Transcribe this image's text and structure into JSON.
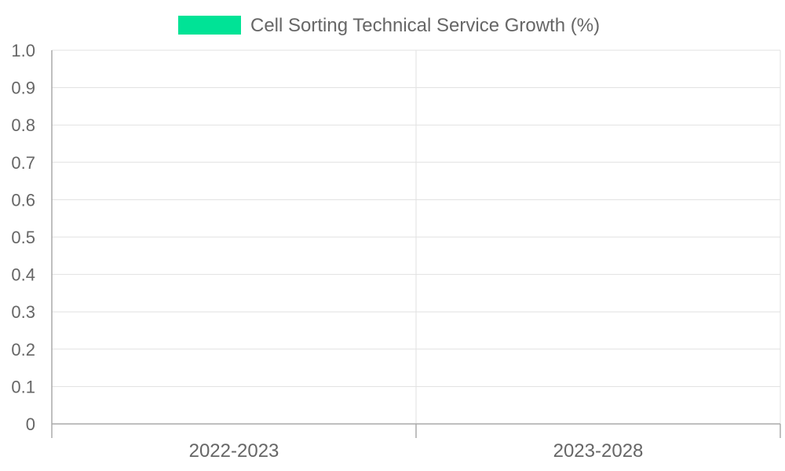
{
  "chart_data": {
    "type": "bar",
    "categories": [
      "2022-2023",
      "2023-2028"
    ],
    "series": [
      {
        "name": "Cell Sorting Technical Service Growth (%)",
        "color": "#00e396",
        "values": [
          0,
          0
        ]
      }
    ],
    "ylim": [
      0,
      1.0
    ],
    "yticks": [
      "0",
      "0.1",
      "0.2",
      "0.3",
      "0.4",
      "0.5",
      "0.6",
      "0.7",
      "0.8",
      "0.9",
      "1.0"
    ],
    "grid": true,
    "legend_position": "top-center"
  }
}
